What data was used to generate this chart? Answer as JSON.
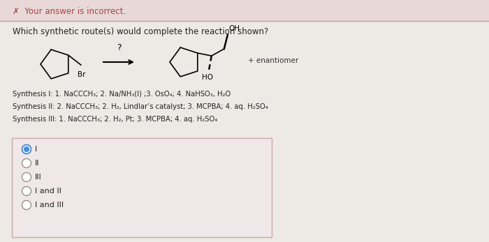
{
  "background_color": "#ede9e4",
  "header_bg": "#e8d8d8",
  "header_line_color": "#c0a0a0",
  "header_text": "✗  Your answer is incorrect.",
  "header_text_color": "#a94442",
  "question_text": "Which synthetic route(s) would complete the reaction shown?",
  "synthesis_lines": [
    "Synthesis I: 1. NaCCCH₃; 2. Na/NH₃(l) ;3. OsO₄; 4. NaHSO₃, H₂O",
    "Synthesis II: 2. NaCCCH₃; 2. H₂, Lindlar’s catalyst; 3. MCPBA; 4. aq. H₂SO₄",
    "Synthesis III: 1. NaCCCH₃; 2. H₂, Pt; 3. MCPBA; 4. aq. H₂SO₄"
  ],
  "options": [
    "I",
    "II",
    "III",
    "I and II",
    "I and III"
  ],
  "selected_option": 0,
  "answer_bg": "#f0e8e8",
  "answer_border": "#c8a8a8",
  "content_bg": "#eae6e0"
}
